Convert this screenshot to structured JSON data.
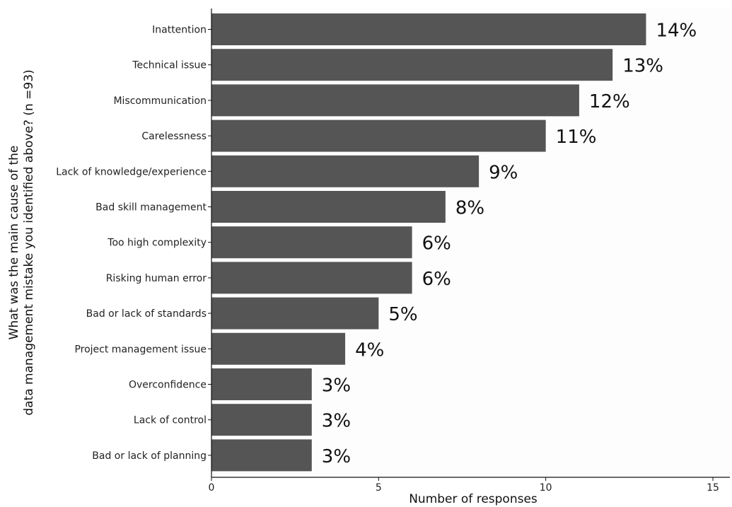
{
  "chart_data": {
    "type": "bar",
    "orientation": "horizontal",
    "categories": [
      "Inattention",
      "Technical issue",
      "Miscommunication",
      "Carelessness",
      "Lack of knowledge/experience",
      "Bad skill management",
      "Too high complexity",
      "Risking human error",
      "Bad or lack of standards",
      "Project management issue",
      "Overconfidence",
      "Lack of control",
      "Bad or lack of planning"
    ],
    "values": [
      13,
      12,
      11,
      10,
      8,
      7,
      6,
      6,
      5,
      4,
      3,
      3,
      3
    ],
    "data_labels": [
      "14%",
      "13%",
      "12%",
      "11%",
      "9%",
      "8%",
      "6%",
      "6%",
      "5%",
      "4%",
      "3%",
      "3%",
      "3%"
    ],
    "xlabel": "Number of responses",
    "ylabel_lines": [
      "What was the main cause of the",
      "data management mistake you identified above?  (n =93)"
    ],
    "xlim": [
      0,
      15
    ],
    "xticks": [
      0,
      5,
      10,
      15
    ],
    "xtick_labels": [
      "0",
      "5",
      "10",
      "15"
    ],
    "bar_color": "#555555",
    "grid": false
  }
}
